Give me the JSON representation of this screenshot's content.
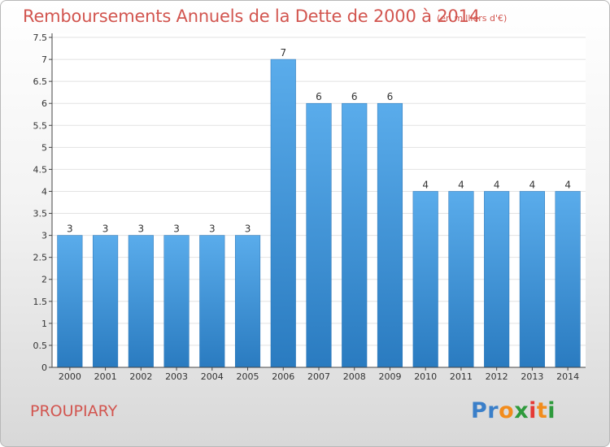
{
  "title": "Remboursements Annuels de la Dette de 2000 à 2014",
  "subtitle": "(en milliers d'€)",
  "commune": "PROUPIARY",
  "logo": {
    "letters": [
      "P",
      "r",
      "o",
      "x",
      "i",
      "t",
      "i"
    ],
    "colors": [
      "#3a7fc9",
      "#3a7fc9",
      "#f28c1c",
      "#2e9a3c",
      "#e53935",
      "#f28c1c",
      "#2e9a3c"
    ]
  },
  "colors": {
    "bar": "#4d9fe0",
    "bar_dark": "#2f7fc4",
    "title": "#d2554f"
  },
  "chart_data": {
    "type": "bar",
    "title": "Remboursements Annuels de la Dette de 2000 à 2014",
    "subtitle": "(en milliers d'€)",
    "xlabel": "",
    "ylabel": "",
    "categories": [
      "2000",
      "2001",
      "2002",
      "2003",
      "2004",
      "2005",
      "2006",
      "2007",
      "2008",
      "2009",
      "2010",
      "2011",
      "2012",
      "2013",
      "2014"
    ],
    "values": [
      3,
      3,
      3,
      3,
      3,
      3,
      7,
      6,
      6,
      6,
      4,
      4,
      4,
      4,
      4
    ],
    "value_labels": [
      "3",
      "3",
      "3",
      "3",
      "3",
      "3",
      "7",
      "6",
      "6",
      "6",
      "4",
      "4",
      "4",
      "4",
      "4"
    ],
    "ylim": [
      0,
      7.5
    ],
    "yticks": [
      "0",
      "0.5",
      "1",
      "1.5",
      "2",
      "2.5",
      "3",
      "3.5",
      "4",
      "4.5",
      "5",
      "5.5",
      "6",
      "6.5",
      "7",
      "7.5"
    ],
    "grid": true
  }
}
